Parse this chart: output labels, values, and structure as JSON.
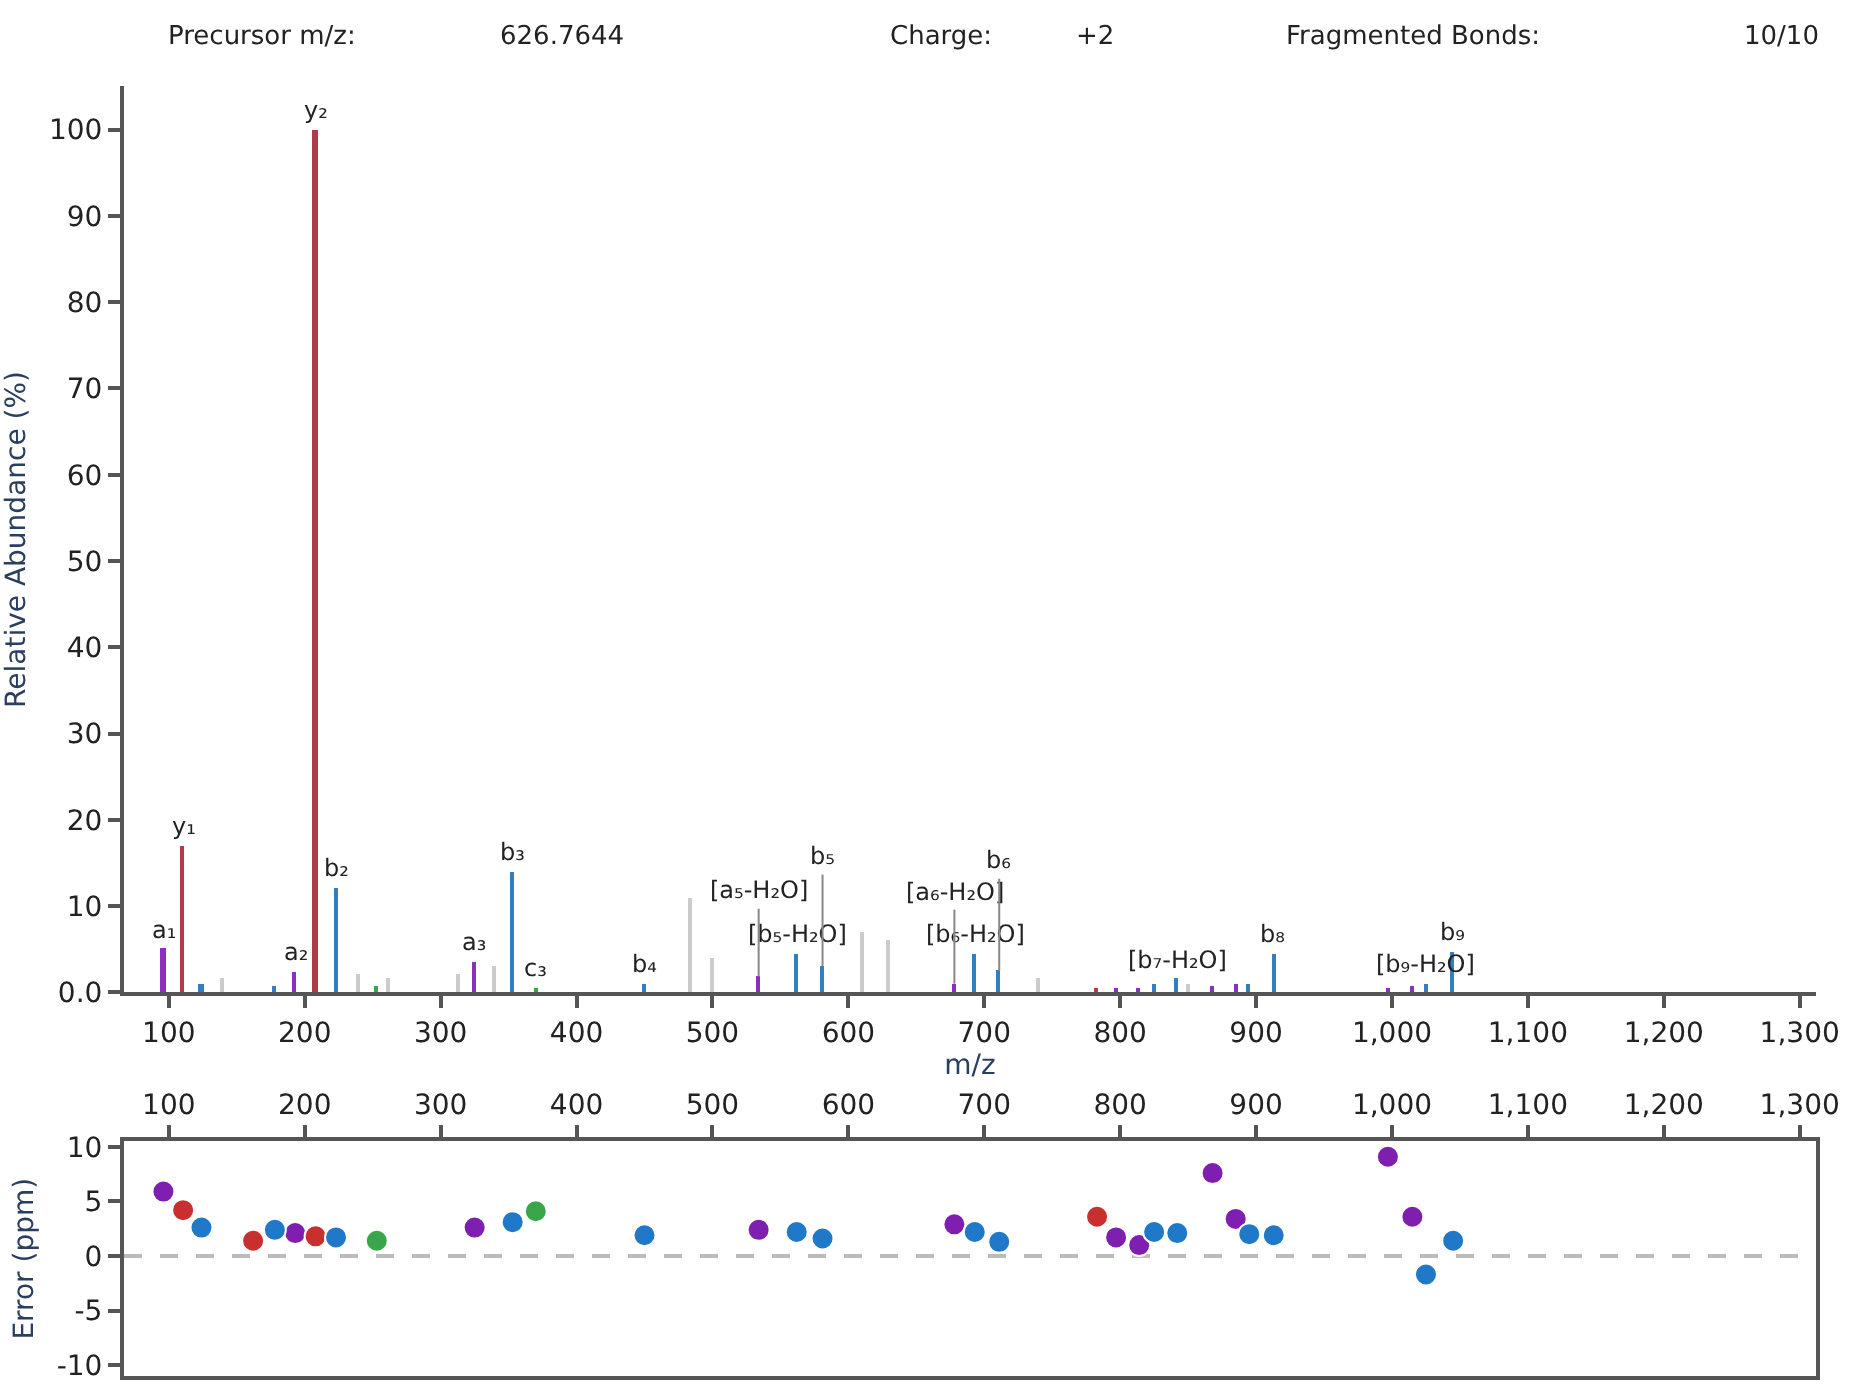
{
  "chart_data": [
    {
      "type": "bar",
      "xlabel": "m/z",
      "ylabel": "Relative Abundance (%)",
      "annotations": [
        "Precursor m/z:",
        "626.7644",
        "Charge:",
        "+2",
        "Fragmented Bonds:",
        "10/10",
        {
          "text": "y₁",
          "x": 110.5,
          "y": 17
        },
        {
          "text": "y₂",
          "x": 208,
          "y": 100
        },
        {
          "text": "b₂",
          "x": 223,
          "y": 12
        },
        {
          "text": "b₃",
          "x": 353,
          "y": 14
        },
        {
          "text": "a₁",
          "x": 96,
          "y": 5
        },
        {
          "text": "a₂",
          "x": 193,
          "y": 2.3
        },
        {
          "text": "a₃",
          "x": 325,
          "y": 3.5
        },
        {
          "text": "c₃",
          "x": 370,
          "y": 0.5
        },
        {
          "text": "b₄",
          "x": 450,
          "y": 1
        },
        {
          "text": "[b₅-H₂O]",
          "x": 562,
          "y": 4.4
        },
        {
          "text": "[a₅-H₂O]",
          "x": 534,
          "y": 1.8
        },
        {
          "text": "b₅",
          "x": 581,
          "y": 3
        },
        {
          "text": "[b₆-H₂O]",
          "x": 693,
          "y": 4.4
        },
        {
          "text": "[a₆-H₂O]",
          "x": 678,
          "y": 1
        },
        {
          "text": "b₆",
          "x": 711,
          "y": 2.5
        },
        {
          "text": "[b₇-H₂O]",
          "x": 842,
          "y": 1.5
        },
        {
          "text": "b₈",
          "x": 913,
          "y": 4.4
        },
        {
          "text": "b₉",
          "x": 1045,
          "y": 4.6
        },
        {
          "text": "[b₉-H₂O]",
          "x": 1025,
          "y": 1
        }
      ],
      "series": [
        {
          "color": "#cccccc",
          "x": [
            140,
            240,
            262,
            313,
            340,
            484,
            500,
            610,
            630,
            740,
            850
          ],
          "values": [
            1.5,
            2,
            1.5,
            2,
            3,
            11,
            4,
            7,
            6,
            1.5,
            1
          ]
        },
        {
          "color": "#b23a48",
          "x": [
            110.5,
            208,
            783
          ],
          "values": [
            17,
            100,
            0.5
          ]
        },
        {
          "color": "#2f7fc1",
          "x": [
            124,
            178,
            223,
            353,
            450,
            562,
            581,
            693,
            711,
            825,
            842,
            895,
            913,
            1025,
            1045
          ],
          "values": [
            1,
            0.8,
            12,
            14,
            1,
            4.4,
            3,
            4.4,
            2.5,
            1,
            1.5,
            1,
            4.4,
            1,
            4.6
          ]
        },
        {
          "color": "#8a2fc0",
          "x": [
            96,
            193,
            325,
            534,
            678,
            797,
            814,
            868,
            885,
            997,
            1015
          ],
          "values": [
            5,
            2.3,
            3.5,
            1.8,
            1,
            0.5,
            0.5,
            0.8,
            1,
            0.5,
            0.8
          ]
        },
        {
          "color": "#3aa64a",
          "x": [
            253,
            370
          ],
          "values": [
            0.8,
            0.5
          ]
        }
      ],
      "xlim": [
        67,
        1312
      ],
      "xticks": [
        100,
        200,
        300,
        400,
        500,
        600,
        700,
        800,
        900,
        {
          "value": 1000,
          "label": "1,000"
        },
        {
          "value": 1100,
          "label": "1,100"
        },
        {
          "value": 1200,
          "label": "1,200"
        },
        {
          "value": 1300,
          "label": "1,300"
        }
      ],
      "ylim": [
        0,
        105
      ],
      "yticks": [
        {
          "value": 0,
          "label": "0.0"
        },
        10,
        20,
        30,
        40,
        50,
        60,
        70,
        80,
        90,
        100
      ],
      "grid": false
    },
    {
      "type": "scatter",
      "ylabel": "Error (ppm)",
      "marker": "circle",
      "series": [
        {
          "color": "#7f1fb0",
          "x": [
            96,
            193,
            325,
            534,
            678,
            797,
            814,
            868,
            885,
            997,
            1015
          ],
          "values": [
            5.9,
            2.1,
            2.6,
            2.4,
            2.9,
            1.7,
            1.0,
            7.6,
            3.4,
            9.1,
            3.6
          ]
        },
        {
          "color": "#c8302f",
          "x": [
            110.5,
            162,
            208,
            783
          ],
          "values": [
            4.2,
            1.4,
            1.8,
            3.6
          ]
        },
        {
          "color": "#1f78c8",
          "x": [
            124,
            178,
            223,
            353,
            450,
            562,
            581,
            693,
            711,
            825,
            842,
            895,
            913,
            1025,
            1045
          ],
          "values": [
            2.6,
            2.4,
            1.7,
            3.1,
            1.9,
            2.2,
            1.6,
            2.2,
            1.3,
            2.2,
            2.1,
            2.0,
            1.9,
            -1.7,
            1.4
          ]
        },
        {
          "color": "#3aa64a",
          "x": [
            253,
            370
          ],
          "values": [
            1.4,
            4.1
          ]
        }
      ],
      "ref_lines": [
        {
          "axis": "y",
          "value": 0,
          "color": "#bbbbbb",
          "line_style": "dashed"
        }
      ],
      "xlim": [
        67,
        1312
      ],
      "xticks": [
        100,
        200,
        300,
        400,
        500,
        600,
        700,
        800,
        900,
        {
          "value": 1000,
          "label": "1,000"
        },
        {
          "value": 1100,
          "label": "1,100"
        },
        {
          "value": 1200,
          "label": "1,200"
        },
        {
          "value": 1300,
          "label": "1,300"
        }
      ],
      "ylim": [
        -11,
        10.5
      ],
      "yticks": [
        -10,
        -5,
        0,
        5,
        10
      ],
      "grid": false
    }
  ]
}
